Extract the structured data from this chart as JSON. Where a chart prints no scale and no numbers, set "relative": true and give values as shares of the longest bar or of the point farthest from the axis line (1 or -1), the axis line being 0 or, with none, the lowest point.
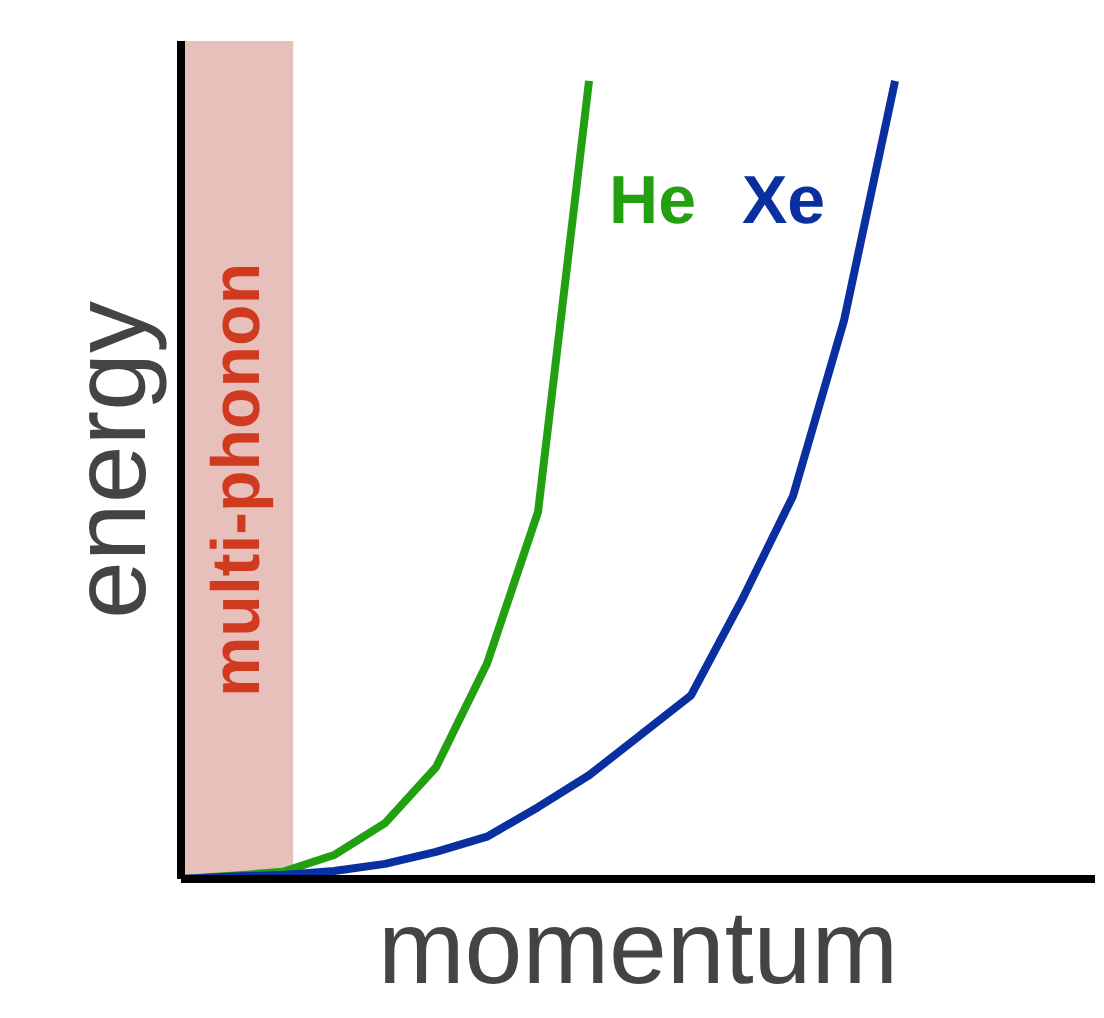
{
  "chart_data": {
    "type": "line",
    "relative": true,
    "xlabel": "momentum",
    "ylabel": "energy",
    "grid": false,
    "marker": "none",
    "line_style": "solid",
    "categories": [
      null,
      null,
      null,
      null,
      null,
      null,
      null,
      null,
      null,
      null,
      null,
      null,
      null,
      null,
      null
    ],
    "series": [
      {
        "name": "He",
        "color": "#22a012",
        "values": [
          0,
          0.004,
          0.009,
          0.03,
          0.07,
          0.14,
          0.27,
          0.46,
          1.0,
          null,
          null,
          null,
          null,
          null,
          null
        ]
      },
      {
        "name": "Xe",
        "color": "#0a2fa0",
        "values": [
          0,
          0.003,
          0.005,
          0.01,
          0.019,
          0.034,
          0.053,
          0.09,
          0.13,
          0.18,
          0.23,
          0.35,
          0.48,
          0.7,
          1.0
        ]
      }
    ],
    "annotations": [
      "multi-phonon"
    ]
  }
}
